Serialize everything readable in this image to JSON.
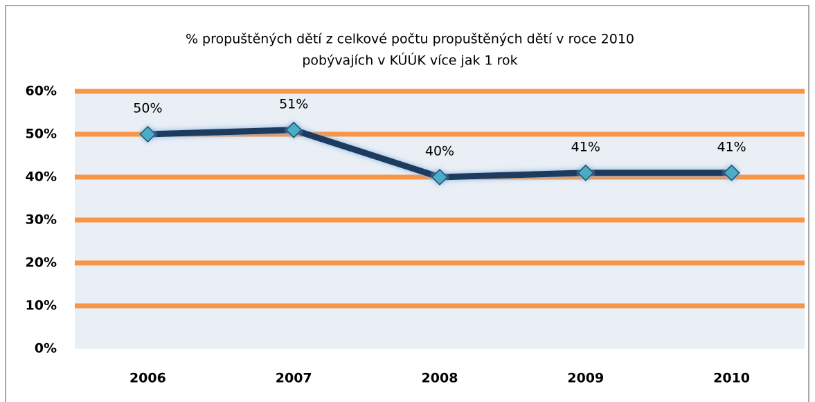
{
  "chart_data": {
    "type": "line",
    "title": [
      "% propuštěných dětí z celkové počtu propuštěných dětí v roce 2010",
      "pobývajích v KÚÚK více jak 1 rok"
    ],
    "categories": [
      "2006",
      "2007",
      "2008",
      "2009",
      "2010"
    ],
    "values": [
      50,
      51,
      40,
      41,
      41
    ],
    "value_labels": [
      "50%",
      "51%",
      "40%",
      "41%",
      "41%"
    ],
    "color": "#1f3a5f",
    "marker_color": "#4bacc6",
    "grid_color": "#f79646",
    "ylim": [
      0,
      60
    ],
    "yticks": [
      {
        "value": 0,
        "label": "0%"
      },
      {
        "value": 10,
        "label": "10%"
      },
      {
        "value": 20,
        "label": "20%"
      },
      {
        "value": 30,
        "label": "30%"
      },
      {
        "value": 40,
        "label": "40%"
      },
      {
        "value": 50,
        "label": "50%"
      },
      {
        "value": 60,
        "label": "60%"
      }
    ],
    "grid": true
  }
}
